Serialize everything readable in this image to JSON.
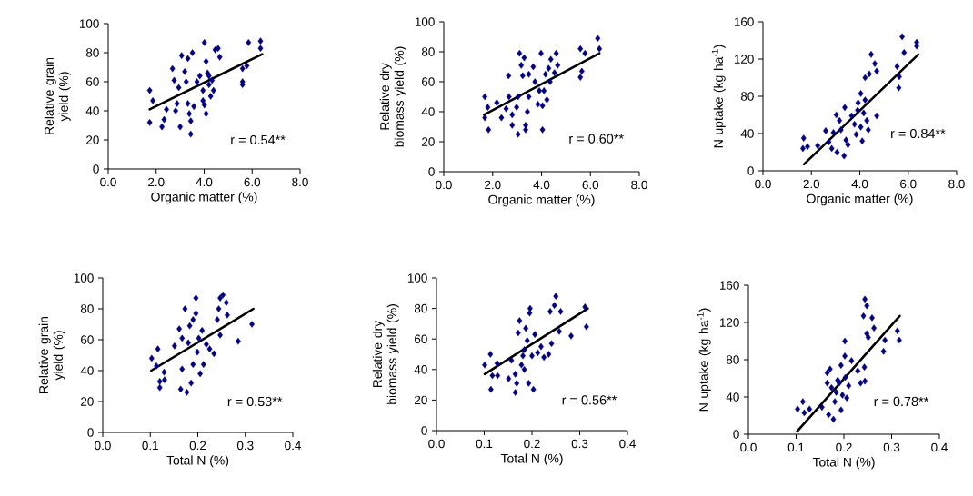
{
  "chart_data": [
    {
      "type": "scatter",
      "xlabel": "Organic matter (%)",
      "ylabel": "Relative grain yield (%)",
      "xlim": [
        0,
        8
      ],
      "ylim": [
        0,
        100
      ],
      "marker": "diamond",
      "xticks": [
        {
          "value": 0,
          "label": "0.0"
        },
        {
          "value": 2,
          "label": "2.0"
        },
        {
          "value": 4,
          "label": "4.0"
        },
        {
          "value": 6,
          "label": "6.0"
        },
        {
          "value": 8,
          "label": "8.0"
        }
      ],
      "yticks": [
        0,
        20,
        40,
        60,
        80,
        100
      ],
      "series": [
        {
          "color": "#000080",
          "x": [
            1.73,
            1.86,
            1.73,
            2.24,
            2.33,
            2.43,
            2.68,
            2.75,
            2.81,
            3.0,
            3.06,
            3.19,
            3.25,
            3.32,
            3.38,
            3.44,
            3.44,
            3.32,
            3.51,
            2.94,
            2.87,
            3.57,
            3.7,
            3.82,
            3.95,
            4.01,
            4.08,
            4.01,
            4.08,
            4.14,
            4.2,
            4.27,
            4.33,
            4.39,
            4.46,
            4.58,
            4.65,
            4.2,
            5.6,
            5.6,
            5.6,
            5.78,
            5.85,
            6.35,
            6.35,
            3.95
          ],
          "values": [
            54,
            47,
            32,
            29,
            34,
            41,
            69,
            61,
            40,
            29,
            78,
            67,
            60,
            45,
            38,
            33,
            24,
            76,
            80,
            56,
            45,
            43,
            60,
            64,
            54,
            87,
            74,
            44,
            38,
            66,
            58,
            50,
            61,
            54,
            82,
            83,
            77,
            64,
            69,
            60,
            58,
            71,
            87,
            88,
            83,
            47
          ]
        },
        {
          "type": "line",
          "marker": "none",
          "color": "#000000",
          "x": [
            1.73,
            6.42
          ],
          "values": [
            41,
            79
          ]
        }
      ],
      "annotations": [
        "r = 0.54**"
      ]
    },
    {
      "type": "scatter",
      "xlabel": "Organic matter (%)",
      "ylabel": "Relative dry biomass yield (%)",
      "xlim": [
        0,
        8
      ],
      "ylim": [
        0,
        100
      ],
      "marker": "diamond",
      "xticks": [
        {
          "value": 0,
          "label": "0.0"
        },
        {
          "value": 2,
          "label": "2.0"
        },
        {
          "value": 4,
          "label": "4.0"
        },
        {
          "value": 6,
          "label": "6.0"
        },
        {
          "value": 8,
          "label": "8.0"
        }
      ],
      "yticks": [
        0,
        20,
        40,
        60,
        80,
        100
      ],
      "series": [
        {
          "color": "#000080",
          "x": [
            1.68,
            1.8,
            1.68,
            1.83,
            2.17,
            2.36,
            2.55,
            2.65,
            2.67,
            2.8,
            2.8,
            2.98,
            3.04,
            3.04,
            3.1,
            3.17,
            3.23,
            3.29,
            3.35,
            3.35,
            3.42,
            3.48,
            3.48,
            3.66,
            3.73,
            3.85,
            3.98,
            4.04,
            4.04,
            4.1,
            4.16,
            4.22,
            4.29,
            4.35,
            4.38,
            4.6,
            4.66,
            4.53,
            5.59,
            5.65,
            5.59,
            5.78,
            6.3,
            6.37,
            3.91
          ],
          "values": [
            50,
            43,
            36,
            28,
            46,
            36,
            42,
            64,
            50,
            38,
            31,
            43,
            25,
            50,
            79,
            71,
            64,
            76,
            31,
            28,
            40,
            65,
            50,
            70,
            60,
            45,
            79,
            28,
            44,
            54,
            65,
            48,
            69,
            60,
            75,
            79,
            71,
            66,
            82,
            67,
            63,
            79,
            89,
            82,
            54
          ]
        },
        {
          "type": "line",
          "marker": "none",
          "color": "#000000",
          "x": [
            1.65,
            6.37
          ],
          "values": [
            38,
            79
          ]
        }
      ],
      "annotations": [
        "r = 0.60**"
      ]
    },
    {
      "type": "scatter",
      "xlabel": "Organic matter (%)",
      "ylabel": "N uptake (kg ha$^{-1}$)",
      "xlim": [
        0,
        8
      ],
      "ylim": [
        0,
        160
      ],
      "marker": "diamond",
      "xticks": [
        {
          "value": 0,
          "label": "0.0"
        },
        {
          "value": 2,
          "label": "2.0"
        },
        {
          "value": 4,
          "label": "4.0"
        },
        {
          "value": 6,
          "label": "6.0"
        },
        {
          "value": 8,
          "label": "8.0"
        }
      ],
      "yticks": [
        0,
        40,
        80,
        120,
        160
      ],
      "series": [
        {
          "color": "#000080",
          "x": [
            1.68,
            1.65,
            1.84,
            2.26,
            2.59,
            2.72,
            2.84,
            3.03,
            3.06,
            3.16,
            3.22,
            3.35,
            3.38,
            3.43,
            3.51,
            3.66,
            3.78,
            3.85,
            3.93,
            4.04,
            4.04,
            4.1,
            4.16,
            4.22,
            4.29,
            4.35,
            4.22,
            4.39,
            4.47,
            4.62,
            4.7,
            4.7,
            5.54,
            5.63,
            5.61,
            5.75,
            5.83,
            6.35,
            6.35,
            2.91,
            3.91
          ],
          "values": [
            35,
            24,
            26,
            27,
            43,
            31,
            24,
            60,
            20,
            54,
            44,
            16,
            68,
            33,
            28,
            59,
            50,
            39,
            73,
            83,
            47,
            32,
            62,
            76,
            54,
            44,
            100,
            104,
            125,
            115,
            107,
            59,
            112,
            101,
            89,
            144,
            127,
            138,
            134,
            41,
            65
          ]
        },
        {
          "type": "line",
          "marker": "none",
          "color": "#000000",
          "x": [
            1.69,
            6.42
          ],
          "values": [
            7,
            125
          ]
        }
      ],
      "annotations": [
        "r = 0.84**"
      ]
    },
    {
      "type": "scatter",
      "xlabel": "Total N (%)",
      "ylabel": "Relative grain yield (%)",
      "xlim": [
        0,
        0.4
      ],
      "ylim": [
        0,
        100
      ],
      "marker": "diamond",
      "xticks": [
        {
          "value": 0,
          "label": "0.0"
        },
        {
          "value": 0.1,
          "label": "0.1"
        },
        {
          "value": 0.2,
          "label": "0.2"
        },
        {
          "value": 0.3,
          "label": "0.3"
        },
        {
          "value": 0.4,
          "label": "0.4"
        }
      ],
      "yticks": [
        0,
        20,
        40,
        60,
        80,
        100
      ],
      "series": [
        {
          "color": "#000080",
          "x": [
            0.103,
            0.116,
            0.113,
            0.12,
            0.12,
            0.129,
            0.13,
            0.151,
            0.161,
            0.164,
            0.173,
            0.177,
            0.167,
            0.18,
            0.183,
            0.186,
            0.19,
            0.196,
            0.196,
            0.199,
            0.202,
            0.205,
            0.209,
            0.212,
            0.218,
            0.225,
            0.234,
            0.241,
            0.247,
            0.244,
            0.247,
            0.253,
            0.26,
            0.262,
            0.285,
            0.314,
            0.167,
            0.19
          ],
          "values": [
            48,
            54,
            43,
            33,
            29,
            39,
            34,
            56,
            67,
            28,
            80,
            26,
            41,
            58,
            69,
            32,
            44,
            87,
            77,
            52,
            61,
            38,
            66,
            44,
            57,
            54,
            51,
            73,
            63,
            80,
            87,
            89,
            84,
            76,
            59,
            70,
            61,
            73
          ]
        },
        {
          "type": "line",
          "marker": "none",
          "color": "#000000",
          "x": [
            0.102,
            0.317
          ],
          "values": [
            40,
            80
          ]
        }
      ],
      "annotations": [
        "r = 0.53**"
      ]
    },
    {
      "type": "scatter",
      "xlabel": "Total N (%)",
      "ylabel": "Relative dry biomass yield (%)",
      "xlim": [
        0,
        0.4
      ],
      "ylim": [
        0,
        100
      ],
      "marker": "diamond",
      "xticks": [
        {
          "value": 0,
          "label": "0.0"
        },
        {
          "value": 0.1,
          "label": "0.1"
        },
        {
          "value": 0.2,
          "label": "0.2"
        },
        {
          "value": 0.3,
          "label": "0.3"
        },
        {
          "value": 0.4,
          "label": "0.4"
        }
      ],
      "yticks": [
        0,
        20,
        40,
        60,
        80,
        100
      ],
      "series": [
        {
          "color": "#000080",
          "x": [
            0.101,
            0.113,
            0.114,
            0.117,
            0.127,
            0.128,
            0.151,
            0.157,
            0.165,
            0.165,
            0.168,
            0.171,
            0.174,
            0.178,
            0.181,
            0.184,
            0.187,
            0.19,
            0.193,
            0.195,
            0.196,
            0.2,
            0.203,
            0.206,
            0.212,
            0.219,
            0.225,
            0.235,
            0.241,
            0.238,
            0.247,
            0.25,
            0.26,
            0.257,
            0.282,
            0.311,
            0.314,
            0.184
          ],
          "values": [
            43,
            50,
            27,
            36,
            44,
            36,
            34,
            46,
            37,
            25,
            31,
            64,
            72,
            43,
            49,
            40,
            67,
            59,
            31,
            77,
            80,
            49,
            27,
            63,
            51,
            55,
            48,
            50,
            57,
            78,
            82,
            88,
            78,
            65,
            62,
            81,
            68,
            53
          ]
        },
        {
          "type": "line",
          "marker": "none",
          "color": "#000000",
          "x": [
            0.101,
            0.317
          ],
          "values": [
            37,
            80
          ]
        }
      ],
      "annotations": [
        "r = 0.56**"
      ]
    },
    {
      "type": "scatter",
      "xlabel": "Total N (%)",
      "ylabel": "N uptake (kg ha$^{-1}$)",
      "xlim": [
        0,
        0.4
      ],
      "ylim": [
        0,
        160
      ],
      "marker": "diamond",
      "xticks": [
        {
          "value": 0,
          "label": "0.0"
        },
        {
          "value": 0.1,
          "label": "0.1"
        },
        {
          "value": 0.2,
          "label": "0.2"
        },
        {
          "value": 0.3,
          "label": "0.3"
        },
        {
          "value": 0.4,
          "label": "0.4"
        }
      ],
      "yticks": [
        0,
        40,
        80,
        120,
        160
      ],
      "series": [
        {
          "color": "#000080",
          "x": [
            0.103,
            0.114,
            0.117,
            0.128,
            0.154,
            0.165,
            0.165,
            0.168,
            0.171,
            0.178,
            0.174,
            0.181,
            0.184,
            0.187,
            0.194,
            0.194,
            0.197,
            0.202,
            0.202,
            0.206,
            0.21,
            0.216,
            0.229,
            0.235,
            0.241,
            0.243,
            0.244,
            0.248,
            0.244,
            0.248,
            0.251,
            0.259,
            0.263,
            0.283,
            0.286,
            0.312,
            0.316,
            0.19,
            0.203
          ],
          "values": [
            27,
            35,
            23,
            27,
            29,
            66,
            55,
            21,
            70,
            16,
            50,
            35,
            45,
            58,
            74,
            26,
            42,
            100,
            84,
            39,
            52,
            79,
            68,
            55,
            127,
            72,
            145,
            138,
            57,
            108,
            104,
            125,
            114,
            89,
            101,
            111,
            101,
            55,
            61
          ]
        },
        {
          "type": "line",
          "marker": "none",
          "color": "#000000",
          "x": [
            0.102,
            0.317
          ],
          "values": [
            3,
            127
          ]
        }
      ],
      "annotations": [
        "r = 0.78**"
      ]
    }
  ]
}
